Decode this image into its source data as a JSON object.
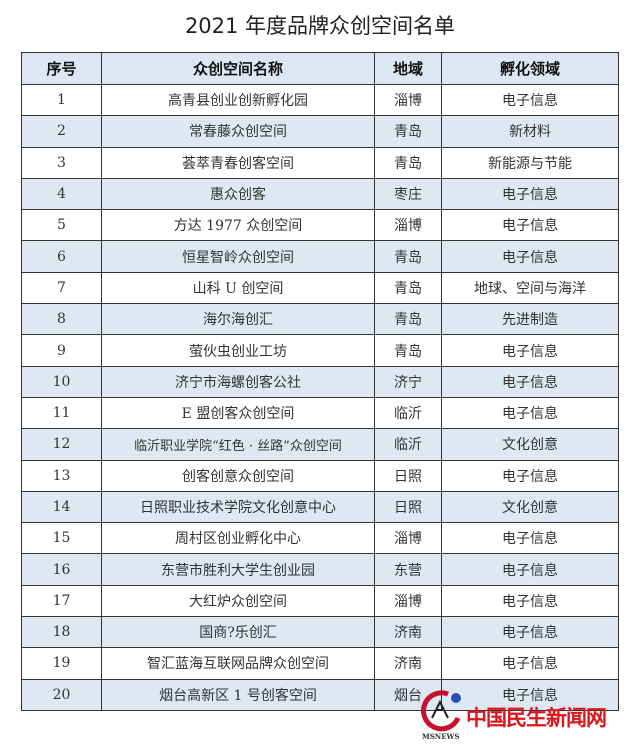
{
  "title": "2021 年度品牌众创空间名单",
  "table": {
    "headers": [
      "序号",
      "众创空间名称",
      "地域",
      "孵化领域"
    ],
    "rows": [
      [
        "1",
        "高青县创业创新孵化园",
        "淄博",
        "电子信息"
      ],
      [
        "2",
        "常春藤众创空间",
        "青岛",
        "新材料"
      ],
      [
        "3",
        "荟萃青春创客空间",
        "青岛",
        "新能源与节能"
      ],
      [
        "4",
        "惠众创客",
        "枣庄",
        "电子信息"
      ],
      [
        "5",
        "方达 1977 众创空间",
        "淄博",
        "电子信息"
      ],
      [
        "6",
        "恒星智岭众创空间",
        "青岛",
        "电子信息"
      ],
      [
        "7",
        "山科 U 创空间",
        "青岛",
        "地球、空间与海洋"
      ],
      [
        "8",
        "海尔海创汇",
        "青岛",
        "先进制造"
      ],
      [
        "9",
        "萤伙虫创业工坊",
        "青岛",
        "电子信息"
      ],
      [
        "10",
        "济宁市海螺创客公社",
        "济宁",
        "电子信息"
      ],
      [
        "11",
        "E 盟创客众创空间",
        "临沂",
        "电子信息"
      ],
      [
        "12",
        "临沂职业学院“红色 · 丝路”众创空间",
        "临沂",
        "文化创意"
      ],
      [
        "13",
        "创客创意众创空间",
        "日照",
        "电子信息"
      ],
      [
        "14",
        "日照职业技术学院文化创意中心",
        "日照",
        "文化创意"
      ],
      [
        "15",
        "周村区创业孵化中心",
        "淄博",
        "电子信息"
      ],
      [
        "16",
        "东营市胜利大学生创业园",
        "东营",
        "电子信息"
      ],
      [
        "17",
        "大红炉众创空间",
        "淄博",
        "电子信息"
      ],
      [
        "18",
        "国商?乐创汇",
        "济南",
        "电子信息"
      ],
      [
        "19",
        "智汇蓝海互联网品牌众创空间",
        "济南",
        "电子信息"
      ],
      [
        "20",
        "烟台高新区 1 号创客空间",
        "烟台",
        "电子信息"
      ]
    ]
  },
  "watermark": {
    "text": "中国民生新闻网",
    "sub": "MSNEWS",
    "color": "#e0141b"
  }
}
